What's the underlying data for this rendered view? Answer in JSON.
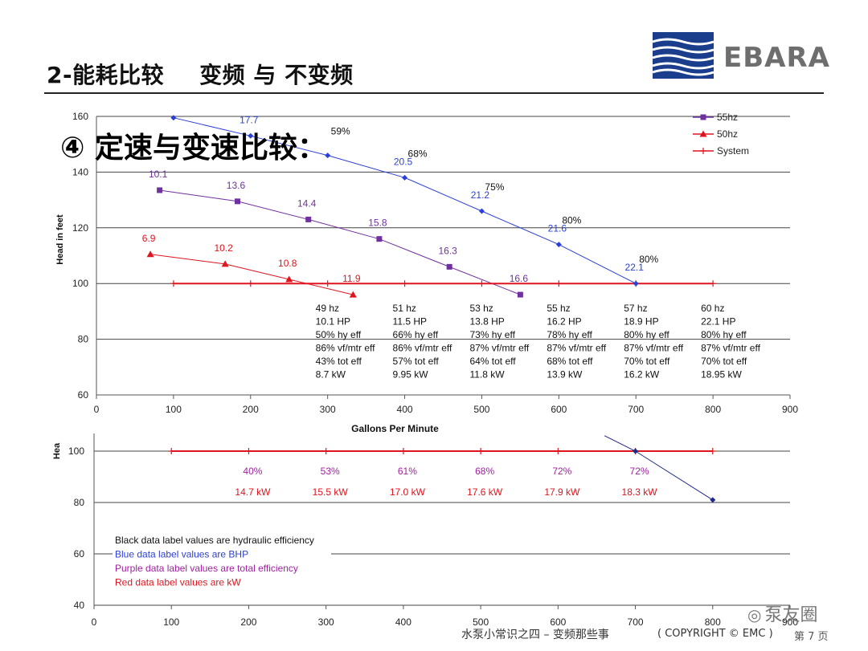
{
  "header": {
    "title_part1": "2-能耗比较",
    "title_part2": "变频 与 不变频",
    "logo_text": "EBARA",
    "logo_color": "#1a3e8c"
  },
  "overlay_text": "④ 定速与变速比较：",
  "footer": {
    "center": "水泵小常识之四 – 变频那些事",
    "copyright": "( COPYRIGHT © EMC )",
    "page": "第 7 页",
    "watermark": "泵友圈"
  },
  "chart_data": [
    {
      "type": "line",
      "xlabel": "Gallons Per Minute",
      "ylabel": "Head in feet",
      "xlim": [
        0,
        900
      ],
      "ylim": [
        60,
        160
      ],
      "xticks": [
        0,
        100,
        200,
        300,
        400,
        500,
        600,
        700,
        800,
        900
      ],
      "yticks": [
        60,
        80,
        100,
        120,
        140,
        160
      ],
      "grid": "horizontal",
      "legend": {
        "placement": "top-right",
        "entries": [
          "55hz",
          "50hz",
          "System"
        ]
      },
      "series": [
        {
          "name": "55hz",
          "color": "#7030a0",
          "marker": "square",
          "x": [
            82,
            183,
            275,
            367,
            458,
            550
          ],
          "y": [
            133.5,
            129.5,
            123,
            116,
            106,
            96
          ],
          "labels": [
            "10.1",
            "13.6",
            "14.4",
            "15.8",
            "16.3",
            "16.6"
          ]
        },
        {
          "name": "50hz",
          "color": "#e0141e",
          "marker": "triangle",
          "x": [
            70,
            167,
            250,
            333
          ],
          "y": [
            110.5,
            107,
            101.5,
            96
          ],
          "labels": [
            "6.9",
            "10.2",
            "10.8",
            "11.9"
          ]
        },
        {
          "name": "System",
          "color": "#e0141e",
          "marker": "plus",
          "x": [
            100,
            200,
            300,
            400,
            500,
            600,
            700,
            800
          ],
          "y": [
            100,
            100,
            100,
            100,
            100,
            100,
            100,
            100
          ]
        },
        {
          "name": "",
          "color": "#2b3fd6",
          "marker": "diamond",
          "x": [
            100,
            200,
            300,
            400,
            500,
            600,
            700
          ],
          "y": [
            159.5,
            153,
            146,
            138,
            126,
            114,
            100
          ],
          "labels": [
            "",
            "17.7",
            "",
            "20.5",
            "21.2",
            "21.6",
            "22.1"
          ],
          "eff_labels": [
            "",
            "",
            "59%",
            "68%",
            "75%",
            "80%",
            "80%"
          ]
        }
      ],
      "table": [
        {
          "x": 300,
          "lines": [
            "49 hz",
            "10.1 HP",
            "50% hy eff",
            "86% vf/mtr eff",
            "43% tot eff",
            "8.7 kW"
          ]
        },
        {
          "x": 400,
          "lines": [
            "51 hz",
            "11.5 HP",
            "66% hy eff",
            "86% vf/mtr eff",
            "57% tot eff",
            "9.95 kW"
          ]
        },
        {
          "x": 500,
          "lines": [
            "53 hz",
            "13.8 HP",
            "73% hy eff",
            "87% vf/mtr eff",
            "64% tot eff",
            "11.8 kW"
          ]
        },
        {
          "x": 600,
          "lines": [
            "55 hz",
            "16.2 HP",
            "78% hy eff",
            "87% vf/mtr eff",
            "68% tot eff",
            "13.9 kW"
          ]
        },
        {
          "x": 700,
          "lines": [
            "57 hz",
            "18.9 HP",
            "80% hy eff",
            "87% vf/mtr eff",
            "70% tot eff",
            "16.2 kW"
          ]
        },
        {
          "x": 800,
          "lines": [
            "60 hz",
            "22.1 HP",
            "80% hy eff",
            "87% vf/mtr eff",
            "70% tot eff",
            "18.95 kW"
          ]
        }
      ]
    },
    {
      "type": "line",
      "ylabel": "Hea",
      "xlim": [
        0,
        900
      ],
      "ylim": [
        40,
        100
      ],
      "xticks": [
        0,
        100,
        200,
        300,
        400,
        500,
        600,
        700,
        800,
        900
      ],
      "yticks": [
        40,
        60,
        80,
        100
      ],
      "grid": "horizontal",
      "series": [
        {
          "name": "System",
          "color": "#e0141e",
          "marker": "plus",
          "x": [
            100,
            200,
            300,
            400,
            500,
            600,
            700,
            800
          ],
          "y": [
            100,
            100,
            100,
            100,
            100,
            100,
            100,
            100
          ]
        },
        {
          "name": "",
          "color": "#1f2a8a",
          "marker": "diamond",
          "x": [
            660,
            700,
            800
          ],
          "y": [
            106,
            100,
            81
          ]
        }
      ],
      "eff_row": {
        "x": [
          200,
          300,
          400,
          500,
          600,
          700
        ],
        "labels": [
          "40%",
          "53%",
          "61%",
          "68%",
          "72%",
          "72%"
        ]
      },
      "kw_row": {
        "x": [
          200,
          300,
          400,
          500,
          600,
          700
        ],
        "labels": [
          "14.7 kW",
          "15.5 kW",
          "17.0 kW",
          "17.6 kW",
          "17.9 kW",
          "18.3 kW"
        ]
      },
      "notes": [
        {
          "text": "Black data label values are hydraulic efficiency",
          "color": "#111111"
        },
        {
          "text": "Blue data label values are BHP",
          "color": "#2b3fd6"
        },
        {
          "text": "Purple data label values are total efficiency",
          "color": "#a020a0"
        },
        {
          "text": "Red data label values are kW",
          "color": "#e0141e"
        }
      ]
    }
  ]
}
